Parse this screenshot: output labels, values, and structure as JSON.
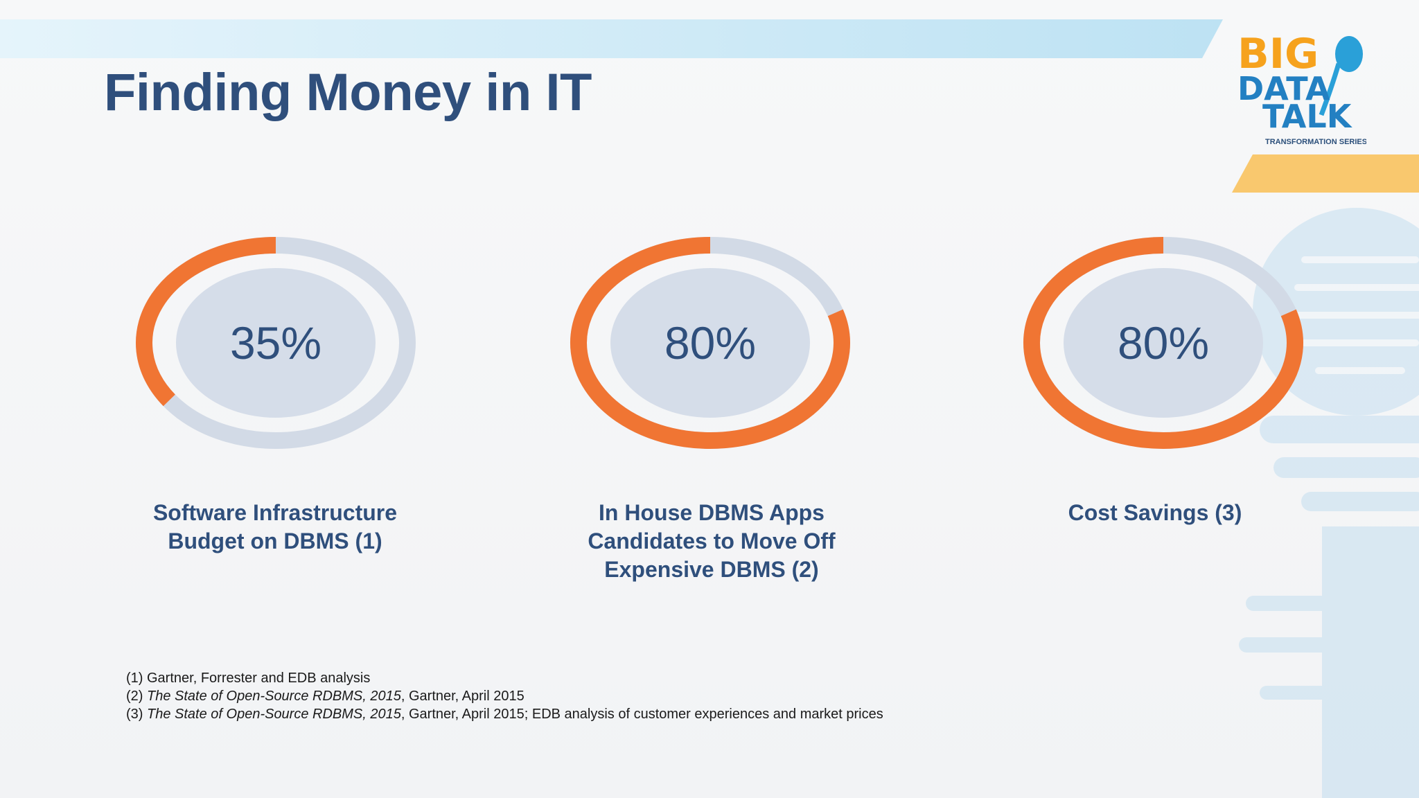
{
  "slide": {
    "title": "Finding Money in IT"
  },
  "logo": {
    "line1": "BIG",
    "line2": "DATA",
    "line3": "TALK",
    "tagline": "TRANSFORMATION SERIES"
  },
  "colors": {
    "accent": "#f07533",
    "track": "#d2dae6",
    "inner": "#d5dde9",
    "title": "#2f4f7c",
    "band": "#c3e4f3",
    "corner": "#f8c56b"
  },
  "chart_data": [
    {
      "type": "pie",
      "label": "35%",
      "value": 35,
      "max": 100,
      "caption": [
        "Software Infrastructure",
        "Budget on DBMS (1)"
      ]
    },
    {
      "type": "pie",
      "label": "80%",
      "value": 80,
      "max": 100,
      "caption": [
        "In House DBMS Apps",
        "Candidates to Move Off",
        "Expensive DBMS (2)"
      ]
    },
    {
      "type": "pie",
      "label": "80%",
      "value": 80,
      "max": 100,
      "caption": [
        "Cost Savings (3)"
      ]
    }
  ],
  "footnotes": [
    {
      "prefix": "(1) Gartner, Forrester and EDB analysis",
      "italic": "",
      "suffix": ""
    },
    {
      "prefix": "(2) ",
      "italic": "The State of Open-Source RDBMS, 2015",
      "suffix": ", Gartner, April 2015"
    },
    {
      "prefix": "(3) ",
      "italic": "The State of Open-Source RDBMS, 2015",
      "suffix": ", Gartner, April 2015; EDB analysis of customer experiences and market prices"
    }
  ]
}
